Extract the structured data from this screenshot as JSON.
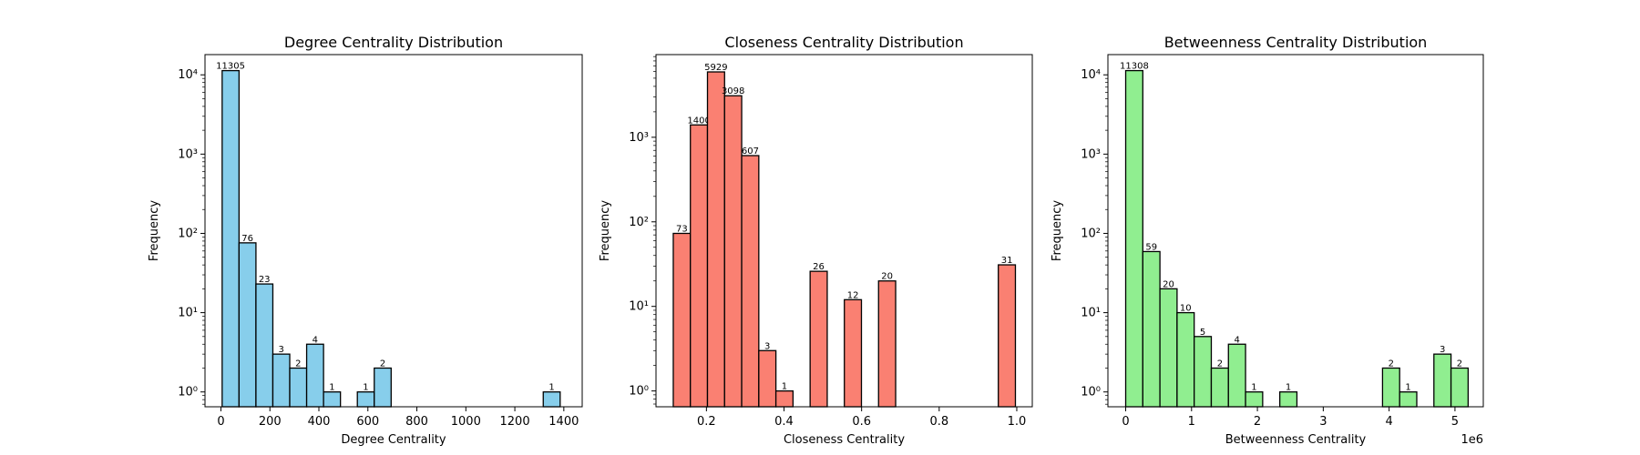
{
  "chart_data": [
    {
      "type": "bar",
      "title": "Degree Centrality Distribution",
      "xlabel": "Degree Centrality",
      "ylabel": "Frequency",
      "color": "#87ceeb",
      "yscale": "log",
      "xlim": [
        -65,
        1475
      ],
      "ylim": [
        0.65,
        18000
      ],
      "xticks": [
        0,
        200,
        400,
        600,
        800,
        1000,
        1200,
        1400
      ],
      "xtick_labels": [
        "0",
        "200",
        "400",
        "600",
        "800",
        "1000",
        "1200",
        "1400"
      ],
      "offset_label": "",
      "bins": [
        {
          "x0": 5,
          "x1": 74,
          "value": 11305
        },
        {
          "x0": 74,
          "x1": 143,
          "value": 76
        },
        {
          "x0": 143,
          "x1": 212,
          "value": 23
        },
        {
          "x0": 212,
          "x1": 281,
          "value": 3
        },
        {
          "x0": 281,
          "x1": 350,
          "value": 2
        },
        {
          "x0": 350,
          "x1": 419,
          "value": 4
        },
        {
          "x0": 419,
          "x1": 488,
          "value": 1
        },
        {
          "x0": 557,
          "x1": 626,
          "value": 1
        },
        {
          "x0": 626,
          "x1": 695,
          "value": 2
        },
        {
          "x0": 1316,
          "x1": 1385,
          "value": 1
        }
      ]
    },
    {
      "type": "bar",
      "title": "Closeness Centrality Distribution",
      "xlabel": "Closeness Centrality",
      "ylabel": "Frequency",
      "color": "#fa8072",
      "yscale": "log",
      "xlim": [
        0.07,
        1.04
      ],
      "ylim": [
        0.65,
        9500
      ],
      "xticks": [
        0.2,
        0.4,
        0.6,
        0.8,
        1.0
      ],
      "xtick_labels": [
        "0.2",
        "0.4",
        "0.6",
        "0.8",
        "1.0"
      ],
      "offset_label": "",
      "bins": [
        {
          "x0": 0.1145,
          "x1": 0.1586,
          "value": 73
        },
        {
          "x0": 0.1586,
          "x1": 0.2027,
          "value": 1400
        },
        {
          "x0": 0.2027,
          "x1": 0.2468,
          "value": 5929
        },
        {
          "x0": 0.2468,
          "x1": 0.2909,
          "value": 3098
        },
        {
          "x0": 0.2909,
          "x1": 0.335,
          "value": 607
        },
        {
          "x0": 0.335,
          "x1": 0.3791,
          "value": 3
        },
        {
          "x0": 0.3791,
          "x1": 0.4232,
          "value": 1
        },
        {
          "x0": 0.4673,
          "x1": 0.5114,
          "value": 26
        },
        {
          "x0": 0.5555,
          "x1": 0.5996,
          "value": 12
        },
        {
          "x0": 0.6437,
          "x1": 0.6878,
          "value": 20
        },
        {
          "x0": 0.9524,
          "x1": 0.9965,
          "value": 31
        }
      ]
    },
    {
      "type": "bar",
      "title": "Betweenness Centrality Distribution",
      "xlabel": "Betweenness Centrality",
      "ylabel": "Frequency",
      "color": "#90ee90",
      "yscale": "log",
      "xlim": [
        -0.27,
        5.43
      ],
      "ylim": [
        0.65,
        18000
      ],
      "xticks": [
        0,
        1,
        2,
        3,
        4,
        5
      ],
      "xtick_labels": [
        "0",
        "1",
        "2",
        "3",
        "4",
        "5"
      ],
      "offset_label": "1e6",
      "bins": [
        {
          "x0": 0.0,
          "x1": 0.26,
          "value": 11308
        },
        {
          "x0": 0.26,
          "x1": 0.52,
          "value": 59
        },
        {
          "x0": 0.52,
          "x1": 0.78,
          "value": 20
        },
        {
          "x0": 0.78,
          "x1": 1.04,
          "value": 10
        },
        {
          "x0": 1.04,
          "x1": 1.3,
          "value": 5
        },
        {
          "x0": 1.3,
          "x1": 1.56,
          "value": 2
        },
        {
          "x0": 1.56,
          "x1": 1.82,
          "value": 4
        },
        {
          "x0": 1.82,
          "x1": 2.08,
          "value": 1
        },
        {
          "x0": 2.34,
          "x1": 2.6,
          "value": 1
        },
        {
          "x0": 3.9,
          "x1": 4.16,
          "value": 2
        },
        {
          "x0": 4.16,
          "x1": 4.42,
          "value": 1
        },
        {
          "x0": 4.68,
          "x1": 4.94,
          "value": 3
        },
        {
          "x0": 4.94,
          "x1": 5.2,
          "value": 2
        }
      ]
    }
  ]
}
